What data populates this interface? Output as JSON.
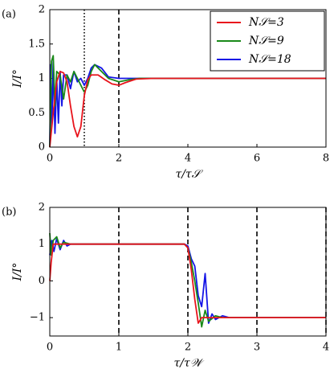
{
  "chart_data": [
    {
      "type": "line",
      "label": "(a)",
      "ylabel": "I/I°",
      "xlabel": "τ/τ𝒮",
      "xlim": [
        0,
        8
      ],
      "ylim": [
        0,
        2
      ],
      "xticks": [
        0,
        2,
        4,
        6,
        8
      ],
      "yticks": [
        0,
        0.5,
        1,
        1.5,
        2
      ],
      "vlines": [
        {
          "x": 1,
          "style": "dotted"
        },
        {
          "x": 2,
          "style": "dashed"
        }
      ],
      "legend": "upper right",
      "series": [
        {
          "name": "N𝒮=3",
          "color": "#e8141c",
          "x": [
            0,
            0.1,
            0.2,
            0.3,
            0.4,
            0.5,
            0.6,
            0.7,
            0.8,
            0.9,
            1.0,
            1.1,
            1.2,
            1.4,
            1.6,
            1.8,
            2.0,
            2.2,
            2.5,
            3,
            4,
            6,
            8
          ],
          "values": [
            0,
            0.5,
            0.95,
            1.1,
            1.08,
            0.95,
            0.6,
            0.3,
            0.15,
            0.3,
            0.75,
            0.98,
            1.05,
            1.05,
            0.98,
            0.92,
            0.9,
            0.94,
            0.99,
            1.0,
            1.0,
            1.0,
            1.0
          ]
        },
        {
          "name": "N𝒮=9",
          "color": "#1a8a1a",
          "x": [
            0,
            0.05,
            0.1,
            0.15,
            0.2,
            0.3,
            0.4,
            0.5,
            0.6,
            0.7,
            0.8,
            0.9,
            1.0,
            1.1,
            1.2,
            1.3,
            1.5,
            1.7,
            2.0,
            2.3,
            2.6,
            3,
            4,
            8
          ],
          "values": [
            0,
            1.25,
            1.33,
            0.6,
            1.1,
            1.05,
            0.7,
            1.05,
            0.95,
            1.1,
            1.0,
            0.9,
            0.8,
            0.9,
            1.1,
            1.2,
            1.1,
            1.0,
            0.95,
            0.98,
            1.0,
            1.0,
            1.0,
            1.0
          ]
        },
        {
          "name": "N𝒮=18",
          "color": "#1414e6",
          "x": [
            0,
            0.03,
            0.06,
            0.1,
            0.15,
            0.2,
            0.25,
            0.3,
            0.35,
            0.4,
            0.5,
            0.6,
            0.7,
            0.8,
            0.9,
            1.0,
            1.1,
            1.2,
            1.3,
            1.5,
            1.7,
            2.0,
            2.5,
            3,
            8
          ],
          "values": [
            0,
            1.2,
            0.3,
            1.25,
            0.2,
            1.0,
            0.35,
            1.1,
            0.6,
            1.05,
            1.05,
            0.85,
            1.1,
            0.95,
            1.0,
            0.9,
            1.0,
            1.15,
            1.2,
            1.15,
            1.02,
            1.0,
            1.0,
            1.0,
            1.0
          ]
        }
      ]
    },
    {
      "type": "line",
      "label": "(b)",
      "ylabel": "I/I°",
      "xlabel": "τ/τ𝒲",
      "xlim": [
        0,
        4
      ],
      "ylim": [
        -1.5,
        2
      ],
      "xticks": [
        0,
        1,
        2,
        3,
        4
      ],
      "yticks": [
        {
          "value": -1,
          "label": "−1"
        },
        0,
        1,
        2
      ],
      "vlines": [
        {
          "x": 1,
          "style": "dashed"
        },
        {
          "x": 2,
          "style": "dashed"
        },
        {
          "x": 3,
          "style": "dashed"
        },
        {
          "x": 4,
          "style": "dashed"
        }
      ],
      "series": [
        {
          "color": "#e8141c",
          "x": [
            0,
            0.02,
            0.05,
            0.1,
            0.2,
            0.5,
            1,
            1.5,
            1.95,
            2.0,
            2.05,
            2.1,
            2.15,
            2.2,
            2.3,
            2.5,
            3,
            4
          ],
          "values": [
            0,
            0.5,
            1.0,
            1.0,
            1.0,
            1.0,
            1.0,
            1.0,
            1.0,
            0.9,
            0.3,
            -0.5,
            -1.15,
            -1.0,
            -1.0,
            -1.0,
            -1.0,
            -1.0
          ]
        },
        {
          "color": "#1a8a1a",
          "x": [
            0,
            0.02,
            0.05,
            0.1,
            0.15,
            0.2,
            0.3,
            0.5,
            1,
            1.95,
            2.0,
            2.05,
            2.1,
            2.15,
            2.2,
            2.25,
            2.3,
            2.4,
            2.5,
            3,
            4
          ],
          "values": [
            1.3,
            0.7,
            1.1,
            1.2,
            0.9,
            1.05,
            1.0,
            1.0,
            1.0,
            1.0,
            0.9,
            0.5,
            0.0,
            -0.6,
            -1.25,
            -0.8,
            -1.1,
            -0.95,
            -1.0,
            -1.0,
            -1.0
          ]
        },
        {
          "color": "#1414e6",
          "x": [
            0,
            0.03,
            0.06,
            0.1,
            0.15,
            0.2,
            0.25,
            0.3,
            0.5,
            1,
            1.95,
            2.0,
            2.05,
            2.1,
            2.15,
            2.2,
            2.25,
            2.3,
            2.35,
            2.4,
            2.5,
            2.6,
            3,
            4
          ],
          "values": [
            0.7,
            1.1,
            0.8,
            1.15,
            0.85,
            1.1,
            0.95,
            1.0,
            1.0,
            1.0,
            1.0,
            0.95,
            0.6,
            0.4,
            -0.4,
            -0.7,
            0.2,
            -1.15,
            -0.9,
            -1.05,
            -0.95,
            -1.0,
            -1.0,
            -1.0
          ]
        }
      ]
    }
  ]
}
